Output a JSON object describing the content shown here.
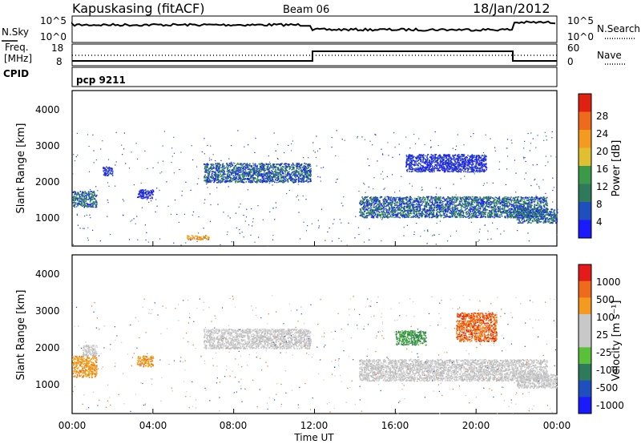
{
  "header": {
    "station": "Kapuskasing (fitACF)",
    "beam": "Beam 06",
    "date": "18/Jan/2012"
  },
  "sky_panel": {
    "left_label": "N.Sky",
    "right_label": "N.Search",
    "left_ticks": [
      "10^5",
      "10^0"
    ],
    "right_ticks": [
      "10^5",
      "10^0"
    ]
  },
  "freq_panel": {
    "left_label_line1": "Freq.",
    "left_label_line2": "[MHz]",
    "right_label": "Nave",
    "left_ticks": [
      "18",
      "8"
    ],
    "right_ticks": [
      "60",
      "0"
    ]
  },
  "cpid": {
    "label": "CPID",
    "value": "pcp 9211"
  },
  "x_axis": {
    "title": "Time UT",
    "ticks": [
      "00:00",
      "04:00",
      "08:00",
      "12:00",
      "16:00",
      "20:00",
      "00:00"
    ]
  },
  "colors": {
    "power": [
      "#1a1aff",
      "#1f4fbf",
      "#2f7a5a",
      "#3a9a4a",
      "#e0c030",
      "#f59a20",
      "#ef6a1a",
      "#e02010"
    ],
    "velocity": [
      "#e51a1a",
      "#ef6a1a",
      "#f59a20",
      "#c8c8c8",
      "#c8c8c8",
      "#5ac03a",
      "#2f7a5a",
      "#1f4fbf",
      "#1a1aff"
    ]
  },
  "chart_data": [
    {
      "type": "scatter",
      "name": "power-panel",
      "xlabel": "",
      "ylabel": "Slant Range [km]",
      "yticks": [
        "1000",
        "2000",
        "3000",
        "4000"
      ],
      "colorbar_label": "Power [dB]",
      "colorbar_ticks": [
        "4",
        "8",
        "12",
        "16",
        "20",
        "24",
        "28"
      ],
      "xlim_hours": [
        0,
        24
      ],
      "ylim_km": [
        180,
        4600
      ],
      "echo_regions": [
        {
          "t0": 0.0,
          "t1": 1.2,
          "r0": 1300,
          "r1": 1750,
          "level": "green-blue"
        },
        {
          "t0": 1.5,
          "t1": 2.0,
          "r0": 2200,
          "r1": 2450,
          "level": "blue"
        },
        {
          "t0": 3.2,
          "t1": 4.0,
          "r0": 1550,
          "r1": 1800,
          "level": "blue"
        },
        {
          "t0": 6.5,
          "t1": 11.8,
          "r0": 2000,
          "r1": 2550,
          "level": "blue-green"
        },
        {
          "t0": 5.6,
          "t1": 6.8,
          "r0": 380,
          "r1": 500,
          "level": "yellow-orange"
        },
        {
          "t0": 14.2,
          "t1": 23.5,
          "r0": 1000,
          "r1": 1600,
          "level": "blue-green"
        },
        {
          "t0": 16.5,
          "t1": 20.5,
          "r0": 2300,
          "r1": 2800,
          "level": "blue"
        },
        {
          "t0": 22.0,
          "t1": 24.0,
          "r0": 850,
          "r1": 1250,
          "level": "blue-green"
        }
      ]
    },
    {
      "type": "scatter",
      "name": "velocity-panel",
      "xlabel": "Time UT",
      "ylabel": "Slant Range [km]",
      "yticks": [
        "1000",
        "2000",
        "3000",
        "4000"
      ],
      "colorbar_label": "Velocity [m s⁻¹]",
      "colorbar_ticks": [
        "1000",
        "500",
        "100",
        "25",
        "-25",
        "-100",
        "-500",
        "-1000"
      ],
      "xlim_hours": [
        0,
        24
      ],
      "ylim_km": [
        180,
        4600
      ],
      "echo_regions": [
        {
          "t0": 0.0,
          "t1": 1.2,
          "r0": 1200,
          "r1": 1800,
          "level": "orange"
        },
        {
          "t0": 0.5,
          "t1": 1.2,
          "r0": 1800,
          "r1": 2100,
          "level": "grey"
        },
        {
          "t0": 3.2,
          "t1": 4.0,
          "r0": 1500,
          "r1": 1800,
          "level": "orange"
        },
        {
          "t0": 6.5,
          "t1": 11.8,
          "r0": 2000,
          "r1": 2550,
          "level": "grey"
        },
        {
          "t0": 14.2,
          "t1": 23.5,
          "r0": 1100,
          "r1": 1700,
          "level": "grey"
        },
        {
          "t0": 16.0,
          "t1": 17.5,
          "r0": 2100,
          "r1": 2500,
          "level": "green"
        },
        {
          "t0": 19.0,
          "t1": 21.0,
          "r0": 2200,
          "r1": 3000,
          "level": "orange-red"
        },
        {
          "t0": 22.0,
          "t1": 24.0,
          "r0": 900,
          "r1": 1300,
          "level": "grey"
        }
      ]
    }
  ]
}
